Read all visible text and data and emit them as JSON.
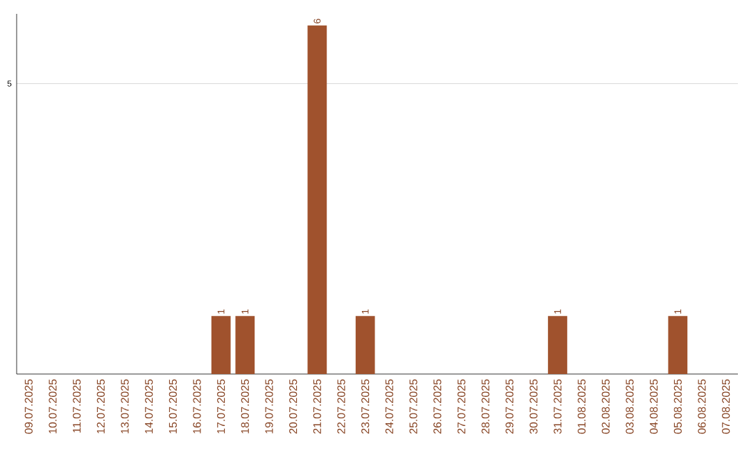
{
  "chart_data": {
    "type": "bar",
    "color": "#a0522d",
    "categories": [
      "09.07.2025",
      "10.07.2025",
      "11.07.2025",
      "12.07.2025",
      "13.07.2025",
      "14.07.2025",
      "15.07.2025",
      "16.07.2025",
      "17.07.2025",
      "18.07.2025",
      "19.07.2025",
      "20.07.2025",
      "21.07.2025",
      "22.07.2025",
      "23.07.2025",
      "24.07.2025",
      "25.07.2025",
      "26.07.2025",
      "27.07.2025",
      "28.07.2025",
      "29.07.2025",
      "30.07.2025",
      "31.07.2025",
      "01.08.2025",
      "02.08.2025",
      "03.08.2025",
      "04.08.2025",
      "05.08.2025",
      "06.08.2025",
      "07.08.2025"
    ],
    "values": [
      0,
      0,
      0,
      0,
      0,
      0,
      0,
      0,
      1,
      1,
      0,
      0,
      6,
      0,
      1,
      0,
      0,
      0,
      0,
      0,
      0,
      0,
      1,
      0,
      0,
      0,
      0,
      1,
      0,
      0
    ],
    "value_labels": [
      null,
      null,
      null,
      null,
      null,
      null,
      null,
      null,
      "1",
      "1",
      null,
      null,
      "6",
      null,
      "1",
      null,
      null,
      null,
      null,
      null,
      null,
      null,
      "1",
      null,
      null,
      null,
      null,
      "1",
      null,
      null
    ],
    "ylim": [
      0,
      6.2
    ],
    "yticks": [
      5
    ],
    "grid": "y"
  }
}
